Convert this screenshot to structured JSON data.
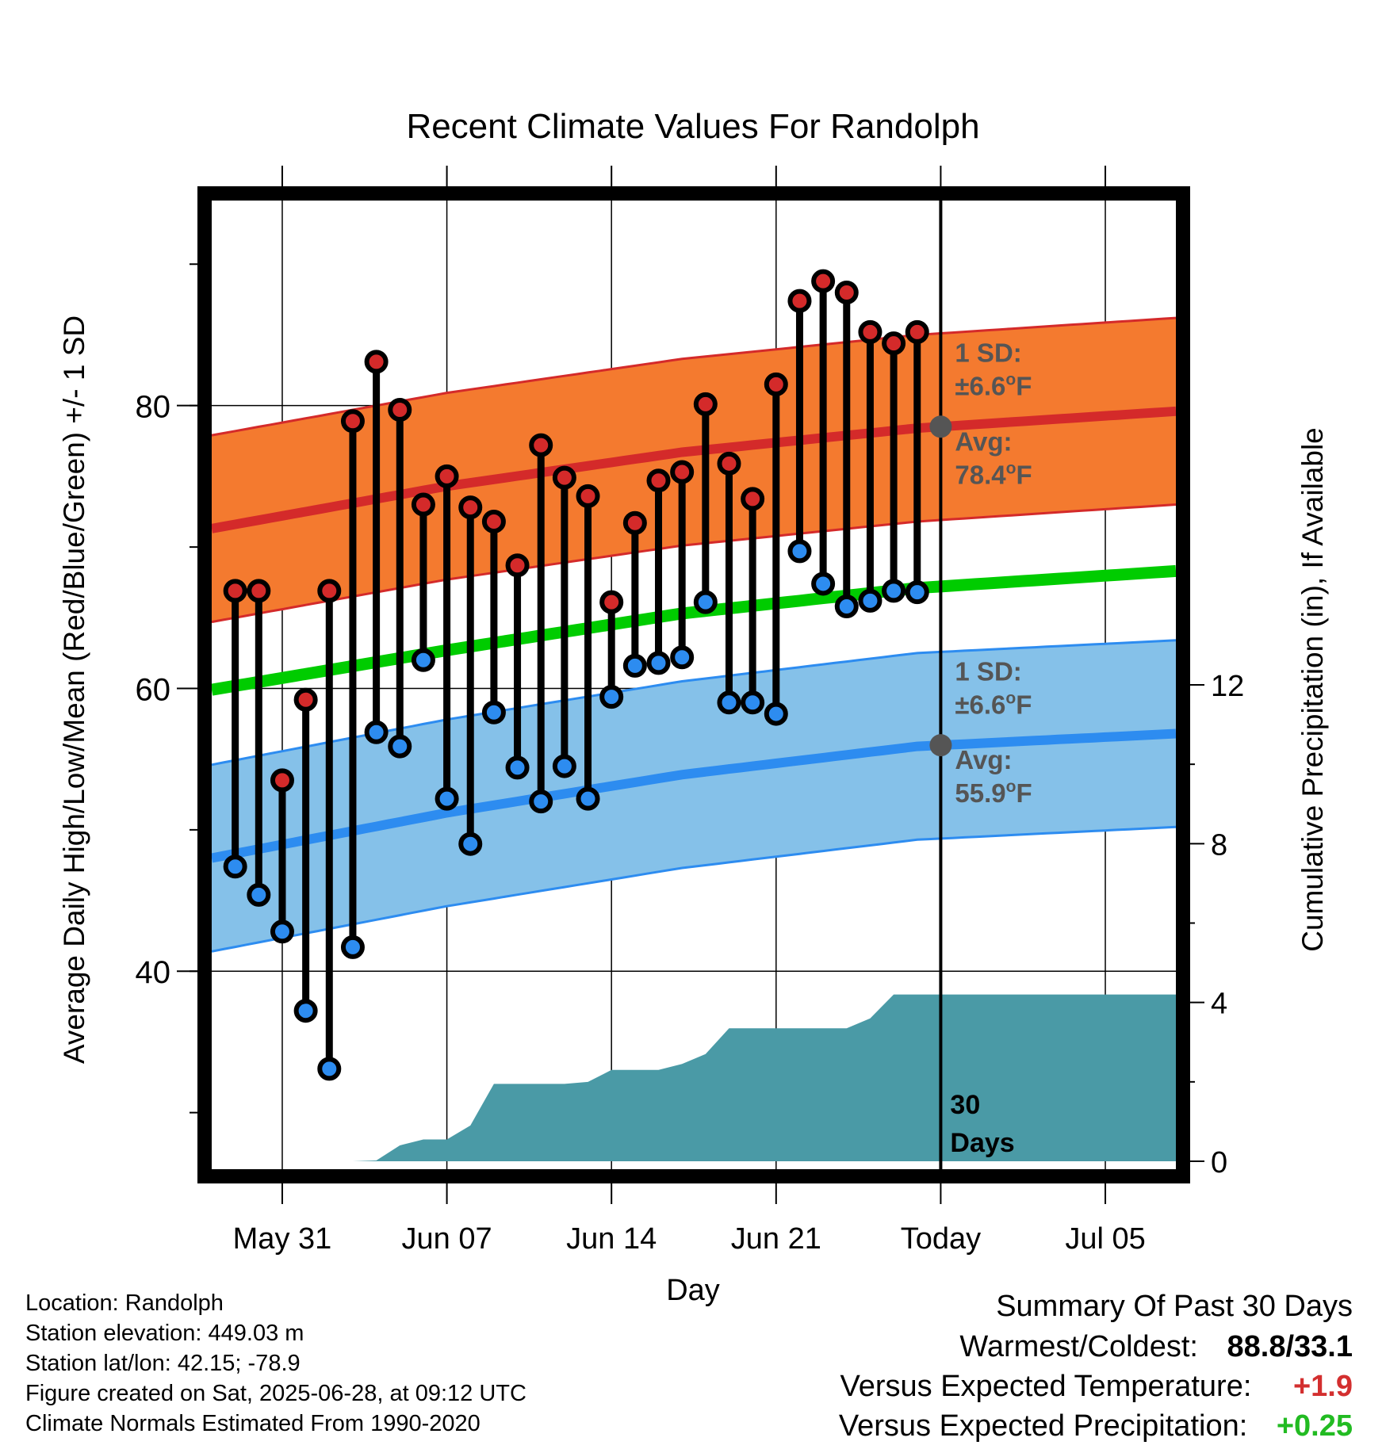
{
  "chart_data": {
    "type": "line",
    "title": "Recent Climate Values For Randolph",
    "xlabel": "Day",
    "ylabel": "Average Daily High/Low/Mean (Red/Blue/Green) +/- 1 SD",
    "y2label": "Cumulative Precipitation (in), If Available",
    "x_ticks": [
      "May 31",
      "Jun 07",
      "Jun 14",
      "Jun 21",
      "Today",
      "Jul 05"
    ],
    "y_ticks": [
      40,
      60,
      80
    ],
    "y2_ticks": [
      0,
      4,
      8,
      12
    ],
    "ylim": [
      26,
      94.5
    ],
    "y2lim": [
      -0.2,
      24.2
    ],
    "xlim": [
      "May 28",
      "Jul 08"
    ],
    "grid": true,
    "colors": {
      "high": "#e12b2b",
      "low": "#2d8cf0",
      "mean": "#00cc00",
      "high_band": "#f47a2f",
      "low_band": "#85c1e9",
      "precip": "#4a9aa6",
      "sd_text": "#555555"
    },
    "series": [
      {
        "name": "Daily High",
        "dates": [
          "May 29",
          "May 30",
          "May 31",
          "Jun 01",
          "Jun 02",
          "Jun 03",
          "Jun 04",
          "Jun 05",
          "Jun 06",
          "Jun 07",
          "Jun 08",
          "Jun 09",
          "Jun 10",
          "Jun 11",
          "Jun 12",
          "Jun 13",
          "Jun 14",
          "Jun 15",
          "Jun 16",
          "Jun 17",
          "Jun 18",
          "Jun 19",
          "Jun 20",
          "Jun 21",
          "Jun 22",
          "Jun 23",
          "Jun 24",
          "Jun 25",
          "Jun 26",
          "Jun 27"
        ],
        "values": [
          66.9,
          66.9,
          53.5,
          59.2,
          66.9,
          78.9,
          83.1,
          79.7,
          73,
          75,
          72.8,
          71.8,
          68.7,
          77.2,
          74.9,
          73.6,
          66.1,
          71.7,
          74.7,
          75.3,
          80.1,
          75.9,
          73.4,
          81.5,
          87.4,
          88.8,
          88,
          85.2,
          84.4,
          85.2
        ]
      },
      {
        "name": "Daily Low",
        "dates": [
          "May 29",
          "May 30",
          "May 31",
          "Jun 01",
          "Jun 02",
          "Jun 03",
          "Jun 04",
          "Jun 05",
          "Jun 06",
          "Jun 07",
          "Jun 08",
          "Jun 09",
          "Jun 10",
          "Jun 11",
          "Jun 12",
          "Jun 13",
          "Jun 14",
          "Jun 15",
          "Jun 16",
          "Jun 17",
          "Jun 18",
          "Jun 19",
          "Jun 20",
          "Jun 21",
          "Jun 22",
          "Jun 23",
          "Jun 24",
          "Jun 25",
          "Jun 26",
          "Jun 27"
        ],
        "values": [
          47.4,
          45.4,
          42.8,
          37.2,
          33.1,
          41.7,
          56.9,
          55.9,
          62,
          52.2,
          49,
          58.3,
          54.4,
          52,
          54.5,
          52.2,
          59.4,
          61.6,
          61.8,
          62.2,
          66.1,
          59,
          59,
          58.2,
          69.7,
          67.4,
          65.8,
          66.2,
          66.9,
          66.8
        ]
      }
    ],
    "normals": {
      "x": [
        "May 28",
        "Jun 07",
        "Jun 17",
        "Jun 27",
        "Jul 08"
      ],
      "avg_high": [
        71.3,
        74.3,
        76.7,
        78.4,
        79.6
      ],
      "high_sd": 6.6,
      "avg_low": [
        48,
        51.2,
        53.9,
        55.9,
        56.8
      ],
      "low_sd": 6.6,
      "avg_mean": [
        59.9,
        62.7,
        65.3,
        67.1,
        68.3
      ]
    },
    "precipitation": {
      "x": [
        "May 28",
        "Jun 03",
        "Jun 04",
        "Jun 05",
        "Jun 06",
        "Jun 07",
        "Jun 08",
        "Jun 09",
        "Jun 12",
        "Jun 13",
        "Jun 14",
        "Jun 16",
        "Jun 17",
        "Jun 18",
        "Jun 19",
        "Jun 24",
        "Jun 25",
        "Jun 26",
        "Jul 08"
      ],
      "values": [
        0,
        0,
        0.02,
        0.4,
        0.55,
        0.55,
        0.9,
        1.95,
        1.95,
        2.0,
        2.3,
        2.3,
        2.45,
        2.7,
        3.35,
        3.35,
        3.6,
        4.2,
        4.2
      ]
    },
    "annotations": [
      {
        "id": "high_sd",
        "line1": "1 SD:",
        "line2": "±6.6",
        "unit": "F"
      },
      {
        "id": "high_avg",
        "line1": "Avg:",
        "line2": "78.4",
        "unit": "F"
      },
      {
        "id": "low_sd",
        "line1": "1 SD:",
        "line2": "±6.6",
        "unit": "F"
      },
      {
        "id": "low_avg",
        "line1": "Avg:",
        "line2": "55.9",
        "unit": "F"
      },
      {
        "id": "days",
        "line1": "30",
        "line2": "Days"
      }
    ]
  },
  "info": {
    "location": "Location: Randolph",
    "elevation": "Station elevation: 449.03 m",
    "latlon": "Station lat/lon: 42.15; -78.9",
    "created": "Figure created on Sat, 2025-06-28, at 09:12 UTC",
    "normals": "Climate Normals Estimated From 1990-2020"
  },
  "summary": {
    "title": "Summary Of Past 30 Days",
    "warm_label": "Warmest/Coldest:",
    "warm_value": "88.8/33.1",
    "temp_label": "Versus Expected Temperature:",
    "temp_value": "+1.9",
    "temp_color": "#d32f2f",
    "precip_label": "Versus Expected Precipitation:",
    "precip_value": "+0.25",
    "precip_color": "#22bb22"
  }
}
